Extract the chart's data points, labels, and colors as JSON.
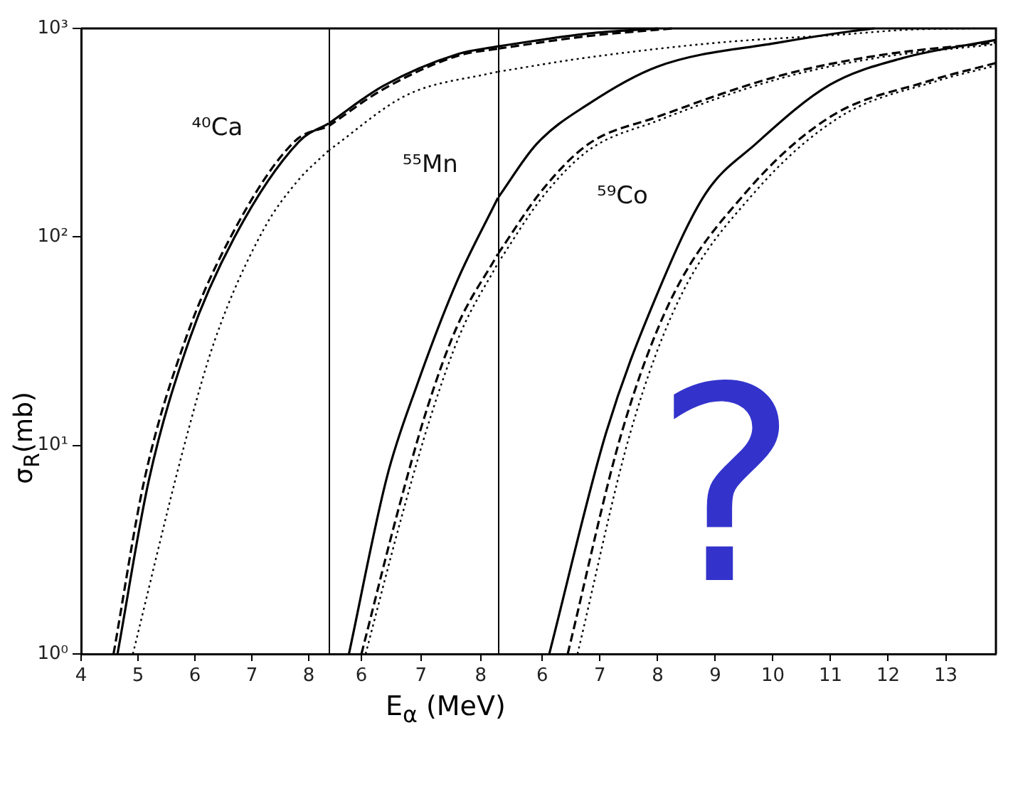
{
  "chart_data": [
    {
      "type": "line",
      "ylabel": "σ$_{R}$(mb)",
      "log": "y",
      "marker": "none",
      "grid": false,
      "legend": false,
      "xlim": [
        4,
        8.35
      ],
      "xticks": [
        4,
        5,
        6,
        7,
        8
      ],
      "ylim": [
        1,
        1000
      ],
      "yticks": [
        {
          "value": 1,
          "label": "10⁰"
        },
        {
          "value": 10,
          "label": "10¹"
        },
        {
          "value": 100,
          "label": "10²"
        },
        {
          "value": 1000,
          "label": "10³"
        }
      ],
      "annotations": [
        "⁴⁰Ca"
      ],
      "series": [
        {
          "color": "#000000",
          "line_style": "solid",
          "x": [
            4.64,
            5.19,
            5.9,
            6.69,
            7.83,
            8.35
          ],
          "values": [
            1,
            6.8,
            32,
            99,
            287,
            350
          ]
        },
        {
          "color": "#000000",
          "line_style": "dashed",
          "x": [
            4.57,
            5.11,
            5.83,
            6.62,
            7.75,
            8.35
          ],
          "values": [
            1,
            6.8,
            32,
            99,
            287,
            340
          ]
        },
        {
          "color": "#000000",
          "line_style": "dotted",
          "x": [
            4.91,
            5.8,
            6.35,
            7.21,
            7.8,
            8.35
          ],
          "values": [
            1,
            9.7,
            32,
            109,
            185,
            260
          ]
        }
      ]
    },
    {
      "type": "line",
      "xlabel": "E$_{α}$ (MeV)",
      "log": "y",
      "marker": "none",
      "grid": false,
      "legend": false,
      "tick_labels": "x",
      "xlim": [
        5.45,
        8.29
      ],
      "xticks": [
        6,
        7,
        8
      ],
      "ylim": [
        1,
        1000
      ],
      "annotations": [
        "⁵⁵Mn"
      ],
      "series": [
        {
          "color": "#000000",
          "line_style": "solid",
          "x": [
            5.45,
            6.36,
            7.62,
            8.29
          ],
          "values": [
            350,
            529,
            754,
            821
          ]
        },
        {
          "color": "#000000",
          "line_style": "dashed",
          "x": [
            5.45,
            6.36,
            7.62,
            8.29
          ],
          "values": [
            340,
            510,
            740,
            800
          ]
        },
        {
          "color": "#000000",
          "line_style": "dotted",
          "x": [
            5.45,
            6.76,
            8.17,
            8.29
          ],
          "values": [
            260,
            479,
            610,
            620
          ]
        },
        {
          "color": "#000000",
          "line_style": "solid",
          "x": [
            5.79,
            6.43,
            6.93,
            7.6,
            8.29
          ],
          "values": [
            1,
            7.1,
            19.4,
            61,
            154
          ]
        },
        {
          "color": "#000000",
          "line_style": "dashed",
          "x": [
            6,
            6.6,
            7.1,
            7.6,
            8.29
          ],
          "values": [
            1,
            4.7,
            15,
            37,
            83
          ]
        },
        {
          "color": "#000000",
          "line_style": "dotted",
          "x": [
            6.07,
            6.67,
            7.17,
            7.67,
            8.29
          ],
          "values": [
            1,
            4.5,
            14,
            35,
            75
          ]
        }
      ]
    },
    {
      "type": "line",
      "log": "y",
      "marker": "none",
      "grid": false,
      "legend": false,
      "tick_labels": "x",
      "xlim": [
        5.23,
        13.87
      ],
      "xticks": [
        6,
        7,
        8,
        9,
        10,
        11,
        12,
        13
      ],
      "ylim": [
        1,
        1000
      ],
      "annotations": [
        "⁵⁹Co",
        "?"
      ],
      "series": [
        {
          "color": "#000000",
          "line_style": "solid",
          "x": [
            5.23,
            6.8,
            8.0
          ],
          "values": [
            821,
            946,
            1000
          ]
        },
        {
          "color": "#000000",
          "line_style": "dashed",
          "x": [
            5.23,
            6.8,
            8.25
          ],
          "values": [
            800,
            920,
            1000
          ]
        },
        {
          "color": "#000000",
          "line_style": "dotted",
          "x": [
            5.23,
            6.75,
            9.1,
            11.16,
            12.37,
            13.5
          ],
          "values": [
            620,
            723,
            857,
            933,
            987,
            1000
          ]
        },
        {
          "color": "#000000",
          "line_style": "solid",
          "x": [
            5.23,
            5.9,
            6.8,
            7.99,
            10.12,
            11.4,
            11.76
          ],
          "values": [
            154,
            279,
            434,
            655,
            857,
            973,
            1000
          ]
        },
        {
          "color": "#000000",
          "line_style": "dashed",
          "x": [
            5.23,
            6.0,
            6.8,
            7.99,
            10.12,
            11.84,
            13.87
          ],
          "values": [
            83,
            168,
            279,
            376,
            593,
            743,
            857
          ]
        },
        {
          "color": "#000000",
          "line_style": "dotted",
          "x": [
            5.23,
            6.0,
            6.8,
            7.99,
            10.12,
            11.84,
            13.87
          ],
          "values": [
            75,
            155,
            260,
            360,
            575,
            725,
            840
          ]
        },
        {
          "color": "#000000",
          "line_style": "solid",
          "x": [
            6.12,
            7.11,
            7.99,
            8.83,
            9.7,
            10.99,
            12.27,
            13.87
          ],
          "values": [
            1,
            11.6,
            53,
            161,
            279,
            537,
            723,
            881
          ]
        },
        {
          "color": "#000000",
          "line_style": "dashed",
          "x": [
            6.44,
            7.38,
            8.23,
            9.51,
            10.99,
            12.71,
            13.87
          ],
          "values": [
            1,
            11.6,
            50,
            161,
            376,
            560,
            683
          ]
        },
        {
          "color": "#000000",
          "line_style": "dotted",
          "x": [
            6.61,
            7.53,
            8.37,
            9.66,
            11.16,
            12.85,
            13.87
          ],
          "values": [
            1,
            11.6,
            50,
            161,
            376,
            560,
            664
          ]
        }
      ]
    }
  ]
}
